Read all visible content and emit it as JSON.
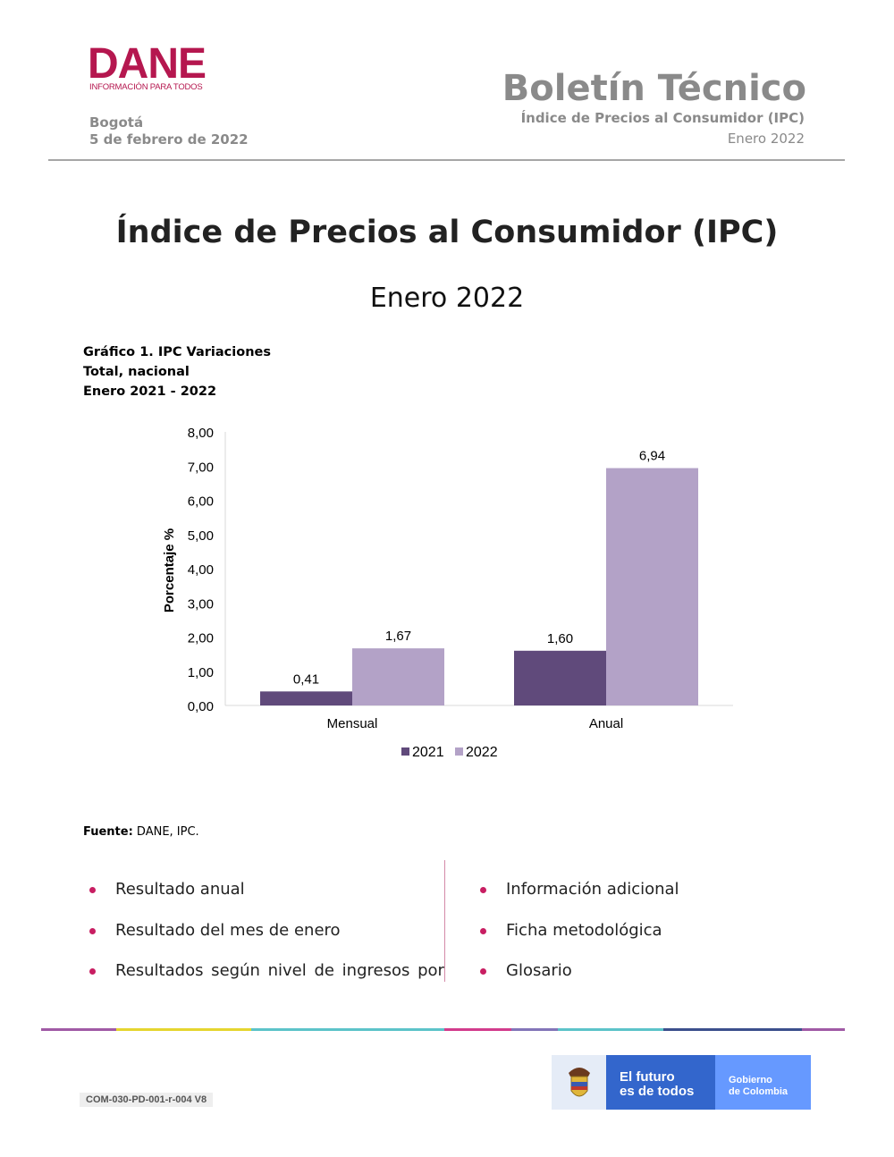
{
  "header": {
    "logo_text": "DANE",
    "logo_tagline": "INFORMACIÓN PARA TODOS",
    "city": "Bogotá",
    "date": "5 de febrero de 2022",
    "bulletin_title": "Boletín Técnico",
    "bulletin_subtitle": "Índice de Precios al Consumidor (IPC)",
    "bulletin_period": "Enero 2022"
  },
  "main": {
    "title": "Índice de Precios al Consumidor (IPC)",
    "subtitle": "Enero 2022",
    "chart_caption": [
      "Gráfico 1. IPC Variaciones",
      "Total, nacional",
      "Enero 2021 - 2022"
    ],
    "source_label": "Fuente:",
    "source_text": " DANE, IPC."
  },
  "chart_data": {
    "type": "bar",
    "categories": [
      "Mensual",
      "Anual"
    ],
    "series": [
      {
        "name": "2021",
        "values": [
          0.41,
          1.6
        ],
        "labels": [
          "0,41",
          "1,60"
        ],
        "color": "#604a7b"
      },
      {
        "name": "2022",
        "values": [
          1.67,
          6.94
        ],
        "labels": [
          "1,67",
          "6,94"
        ],
        "color": "#b3a2c7"
      }
    ],
    "ylabel": "Porcentaje %",
    "ylim": [
      0,
      8
    ],
    "yticks": [
      "0,00",
      "1,00",
      "2,00",
      "3,00",
      "4,00",
      "5,00",
      "6,00",
      "7,00",
      "8,00"
    ],
    "legend_position": "bottom",
    "grid": false
  },
  "links": {
    "left": [
      "Resultado anual",
      "Resultado del mes de enero",
      "Resultados según nivel de ingresos por"
    ],
    "right": [
      "Información adicional",
      "Ficha metodológica",
      "Glosario"
    ]
  },
  "footer": {
    "colors": [
      "#a05aa5",
      "#e5d52f",
      "#5cc3c9",
      "#d23c8c",
      "#8275b8",
      "#5cc3c9",
      "#3c4f8c",
      "#a05aa5"
    ],
    "code": "COM-030-PD-001-r-004 V8",
    "gov_slogan_1": "El futuro",
    "gov_slogan_2": "es de todos",
    "gov_name_1": "Gobierno",
    "gov_name_2": "de Colombia"
  }
}
